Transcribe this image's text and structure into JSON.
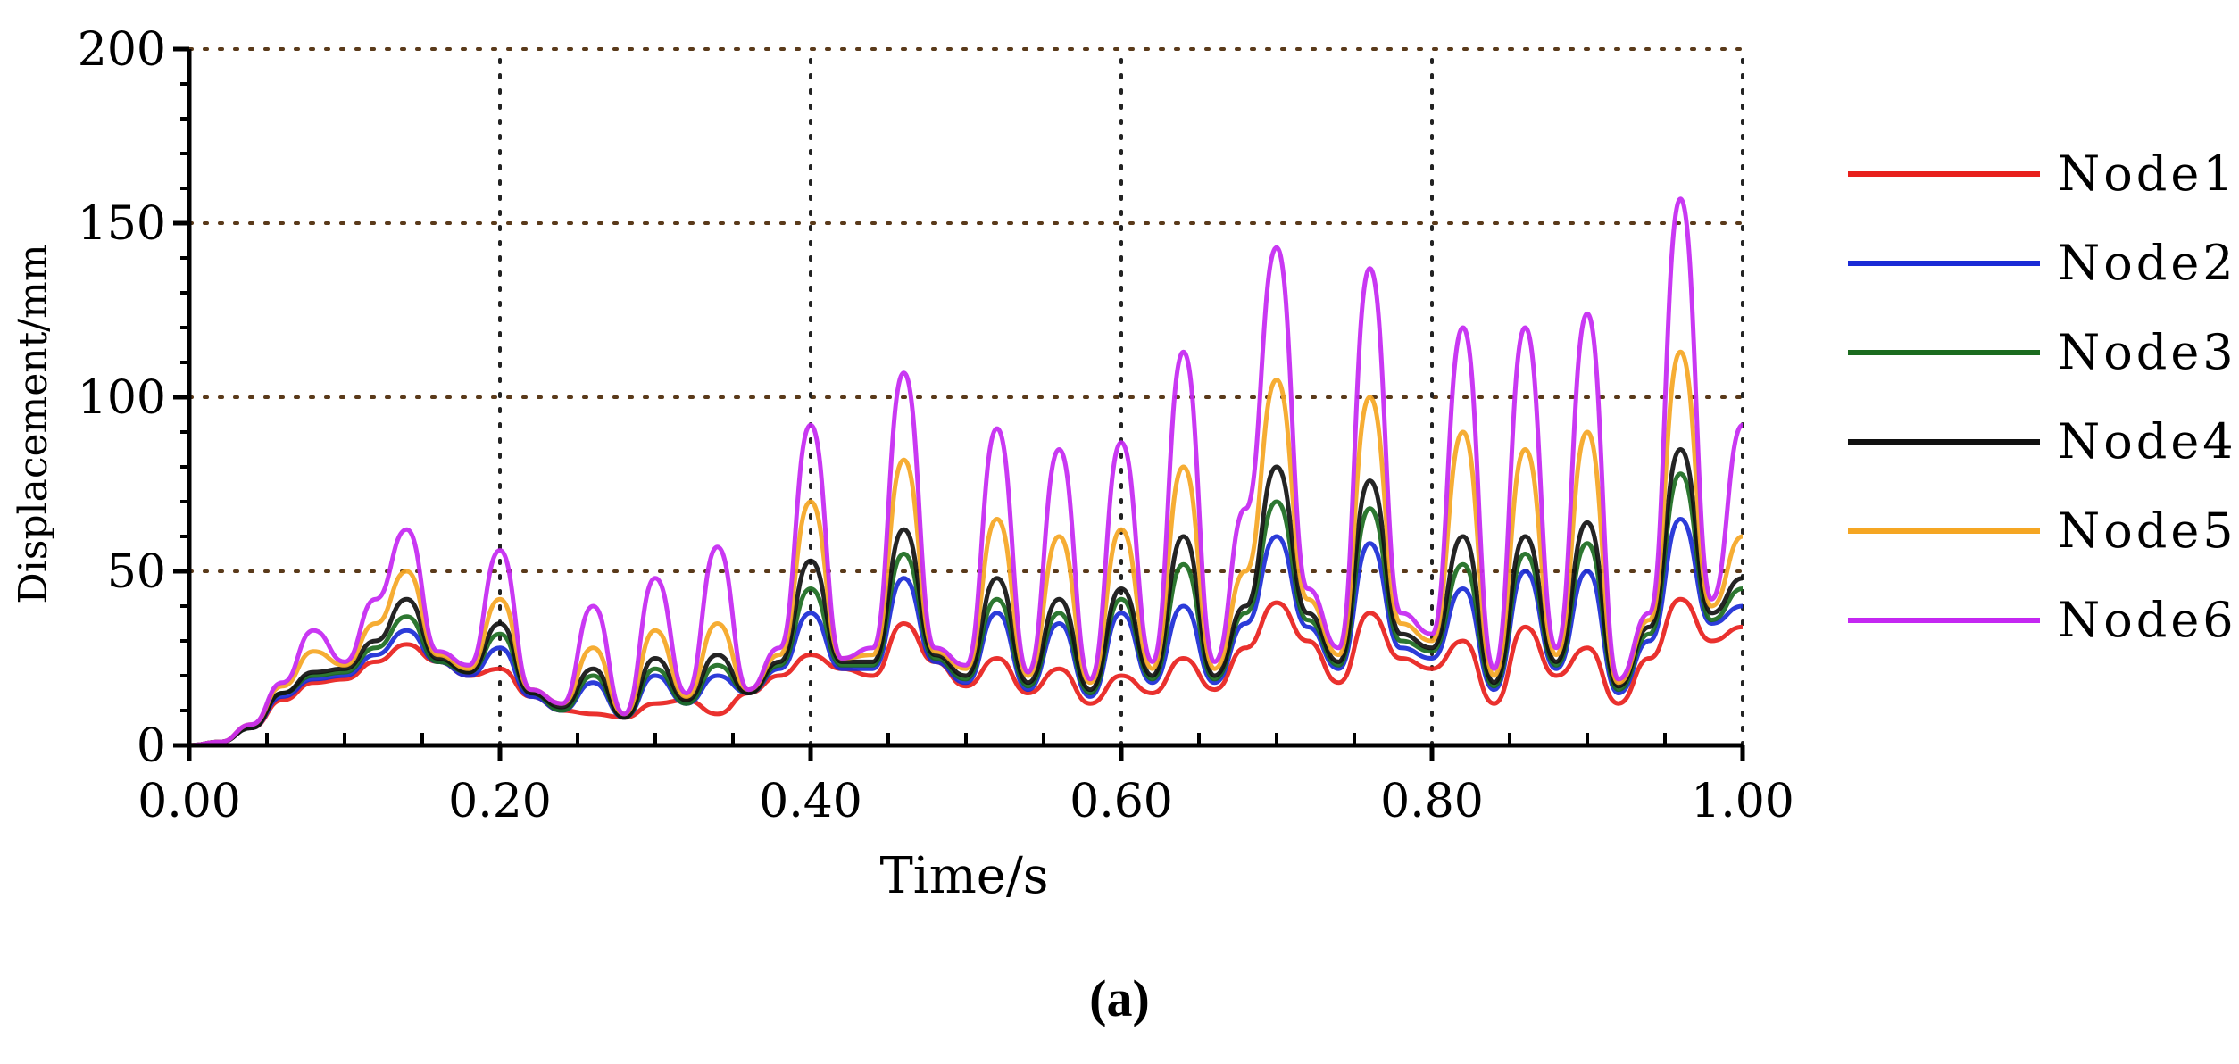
{
  "chart_data": {
    "type": "line",
    "title": "",
    "xlabel": "Time/s",
    "ylabel": "Displacement/mm",
    "xlim": [
      0,
      1.0
    ],
    "ylim": [
      0,
      200
    ],
    "xticks": [
      0,
      0.2,
      0.4,
      0.6,
      0.8,
      1.0
    ],
    "xtick_labels": [
      "0.00",
      "0.20",
      "0.40",
      "0.60",
      "0.80",
      "1.00"
    ],
    "yticks": [
      0,
      50,
      100,
      150,
      200
    ],
    "ytick_labels": [
      "0",
      "50",
      "100",
      "150",
      "200"
    ],
    "grid": true,
    "legend_position": "right",
    "series": [
      {
        "name": "Node1",
        "color": "#e8201c",
        "x": [
          0,
          0.02,
          0.04,
          0.06,
          0.08,
          0.1,
          0.12,
          0.14,
          0.16,
          0.18,
          0.2,
          0.22,
          0.24,
          0.26,
          0.28,
          0.3,
          0.32,
          0.34,
          0.36,
          0.38,
          0.4,
          0.42,
          0.44,
          0.46,
          0.48,
          0.5,
          0.52,
          0.54,
          0.56,
          0.58,
          0.6,
          0.62,
          0.64,
          0.66,
          0.68,
          0.7,
          0.72,
          0.74,
          0.76,
          0.78,
          0.8,
          0.82,
          0.84,
          0.86,
          0.88,
          0.9,
          0.92,
          0.94,
          0.96,
          0.98,
          1.0
        ],
        "values": [
          0,
          1,
          5,
          13,
          18,
          19,
          24,
          29,
          24,
          20,
          22,
          14,
          10,
          9,
          8,
          12,
          13,
          9,
          15,
          20,
          26,
          22,
          20,
          35,
          24,
          17,
          25,
          15,
          22,
          12,
          20,
          15,
          25,
          16,
          28,
          41,
          30,
          18,
          38,
          25,
          22,
          30,
          12,
          34,
          20,
          28,
          12,
          25,
          42,
          30,
          34
        ]
      },
      {
        "name": "Node2",
        "color": "#1a2bd6",
        "x": [
          0,
          0.02,
          0.04,
          0.06,
          0.08,
          0.1,
          0.12,
          0.14,
          0.16,
          0.18,
          0.2,
          0.22,
          0.24,
          0.26,
          0.28,
          0.3,
          0.32,
          0.34,
          0.36,
          0.38,
          0.4,
          0.42,
          0.44,
          0.46,
          0.48,
          0.5,
          0.52,
          0.54,
          0.56,
          0.58,
          0.6,
          0.62,
          0.64,
          0.66,
          0.68,
          0.7,
          0.72,
          0.74,
          0.76,
          0.78,
          0.8,
          0.82,
          0.84,
          0.86,
          0.88,
          0.9,
          0.92,
          0.94,
          0.96,
          0.98,
          1.0
        ],
        "values": [
          0,
          1,
          5,
          14,
          19,
          20,
          26,
          33,
          24,
          20,
          28,
          14,
          10,
          18,
          8,
          20,
          12,
          20,
          15,
          22,
          38,
          22,
          22,
          48,
          24,
          18,
          38,
          16,
          35,
          14,
          38,
          18,
          40,
          18,
          35,
          60,
          34,
          22,
          58,
          28,
          25,
          45,
          16,
          50,
          22,
          50,
          15,
          30,
          65,
          35,
          40
        ]
      },
      {
        "name": "Node3",
        "color": "#1b6b1f",
        "x": [
          0,
          0.02,
          0.04,
          0.06,
          0.08,
          0.1,
          0.12,
          0.14,
          0.16,
          0.18,
          0.2,
          0.22,
          0.24,
          0.26,
          0.28,
          0.3,
          0.32,
          0.34,
          0.36,
          0.38,
          0.4,
          0.42,
          0.44,
          0.46,
          0.48,
          0.5,
          0.52,
          0.54,
          0.56,
          0.58,
          0.6,
          0.62,
          0.64,
          0.66,
          0.68,
          0.7,
          0.72,
          0.74,
          0.76,
          0.78,
          0.8,
          0.82,
          0.84,
          0.86,
          0.88,
          0.9,
          0.92,
          0.94,
          0.96,
          0.98,
          1.0
        ],
        "values": [
          0,
          1,
          5,
          15,
          20,
          21,
          28,
          37,
          24,
          21,
          32,
          15,
          10,
          20,
          8,
          22,
          12,
          23,
          15,
          23,
          45,
          23,
          23,
          55,
          25,
          19,
          42,
          17,
          38,
          15,
          42,
          19,
          52,
          19,
          38,
          70,
          36,
          23,
          68,
          30,
          27,
          52,
          17,
          55,
          23,
          58,
          16,
          32,
          78,
          36,
          45
        ]
      },
      {
        "name": "Node4",
        "color": "#111111",
        "x": [
          0,
          0.02,
          0.04,
          0.06,
          0.08,
          0.1,
          0.12,
          0.14,
          0.16,
          0.18,
          0.2,
          0.22,
          0.24,
          0.26,
          0.28,
          0.3,
          0.32,
          0.34,
          0.36,
          0.38,
          0.4,
          0.42,
          0.44,
          0.46,
          0.48,
          0.5,
          0.52,
          0.54,
          0.56,
          0.58,
          0.6,
          0.62,
          0.64,
          0.66,
          0.68,
          0.7,
          0.72,
          0.74,
          0.76,
          0.78,
          0.8,
          0.82,
          0.84,
          0.86,
          0.88,
          0.9,
          0.92,
          0.94,
          0.96,
          0.98,
          1.0
        ],
        "values": [
          0,
          1,
          5,
          15,
          21,
          22,
          30,
          42,
          25,
          21,
          35,
          15,
          11,
          22,
          8,
          25,
          13,
          26,
          15,
          24,
          53,
          24,
          24,
          62,
          26,
          20,
          48,
          18,
          42,
          16,
          45,
          20,
          60,
          20,
          40,
          80,
          38,
          24,
          76,
          32,
          28,
          60,
          18,
          60,
          24,
          64,
          17,
          34,
          85,
          38,
          48
        ]
      },
      {
        "name": "Node5",
        "color": "#f5a623",
        "x": [
          0,
          0.02,
          0.04,
          0.06,
          0.08,
          0.1,
          0.12,
          0.14,
          0.16,
          0.18,
          0.2,
          0.22,
          0.24,
          0.26,
          0.28,
          0.3,
          0.32,
          0.34,
          0.36,
          0.38,
          0.4,
          0.42,
          0.44,
          0.46,
          0.48,
          0.5,
          0.52,
          0.54,
          0.56,
          0.58,
          0.6,
          0.62,
          0.64,
          0.66,
          0.68,
          0.7,
          0.72,
          0.74,
          0.76,
          0.78,
          0.8,
          0.82,
          0.84,
          0.86,
          0.88,
          0.9,
          0.92,
          0.94,
          0.96,
          0.98,
          1.0
        ],
        "values": [
          0,
          1,
          6,
          17,
          27,
          23,
          35,
          50,
          26,
          22,
          42,
          16,
          12,
          28,
          9,
          33,
          14,
          35,
          16,
          26,
          70,
          25,
          26,
          82,
          27,
          22,
          65,
          20,
          60,
          18,
          62,
          22,
          80,
          22,
          50,
          105,
          42,
          26,
          100,
          35,
          30,
          90,
          20,
          85,
          26,
          90,
          18,
          36,
          113,
          40,
          60
        ]
      },
      {
        "name": "Node6",
        "color": "#c427f2",
        "x": [
          0,
          0.02,
          0.04,
          0.06,
          0.08,
          0.1,
          0.12,
          0.14,
          0.16,
          0.18,
          0.2,
          0.22,
          0.24,
          0.26,
          0.28,
          0.3,
          0.32,
          0.34,
          0.36,
          0.38,
          0.4,
          0.42,
          0.44,
          0.46,
          0.48,
          0.5,
          0.52,
          0.54,
          0.56,
          0.58,
          0.6,
          0.62,
          0.64,
          0.66,
          0.68,
          0.7,
          0.72,
          0.74,
          0.76,
          0.78,
          0.8,
          0.82,
          0.84,
          0.86,
          0.88,
          0.9,
          0.92,
          0.94,
          0.96,
          0.98,
          1.0
        ],
        "values": [
          0,
          1,
          6,
          18,
          33,
          24,
          42,
          62,
          27,
          23,
          56,
          16,
          12,
          40,
          9,
          48,
          15,
          57,
          16,
          28,
          92,
          25,
          28,
          107,
          28,
          23,
          91,
          21,
          85,
          19,
          87,
          24,
          113,
          24,
          68,
          143,
          45,
          28,
          137,
          38,
          32,
          120,
          22,
          120,
          28,
          124,
          19,
          38,
          157,
          42,
          92
        ]
      }
    ],
    "panel_label": "(a)"
  }
}
